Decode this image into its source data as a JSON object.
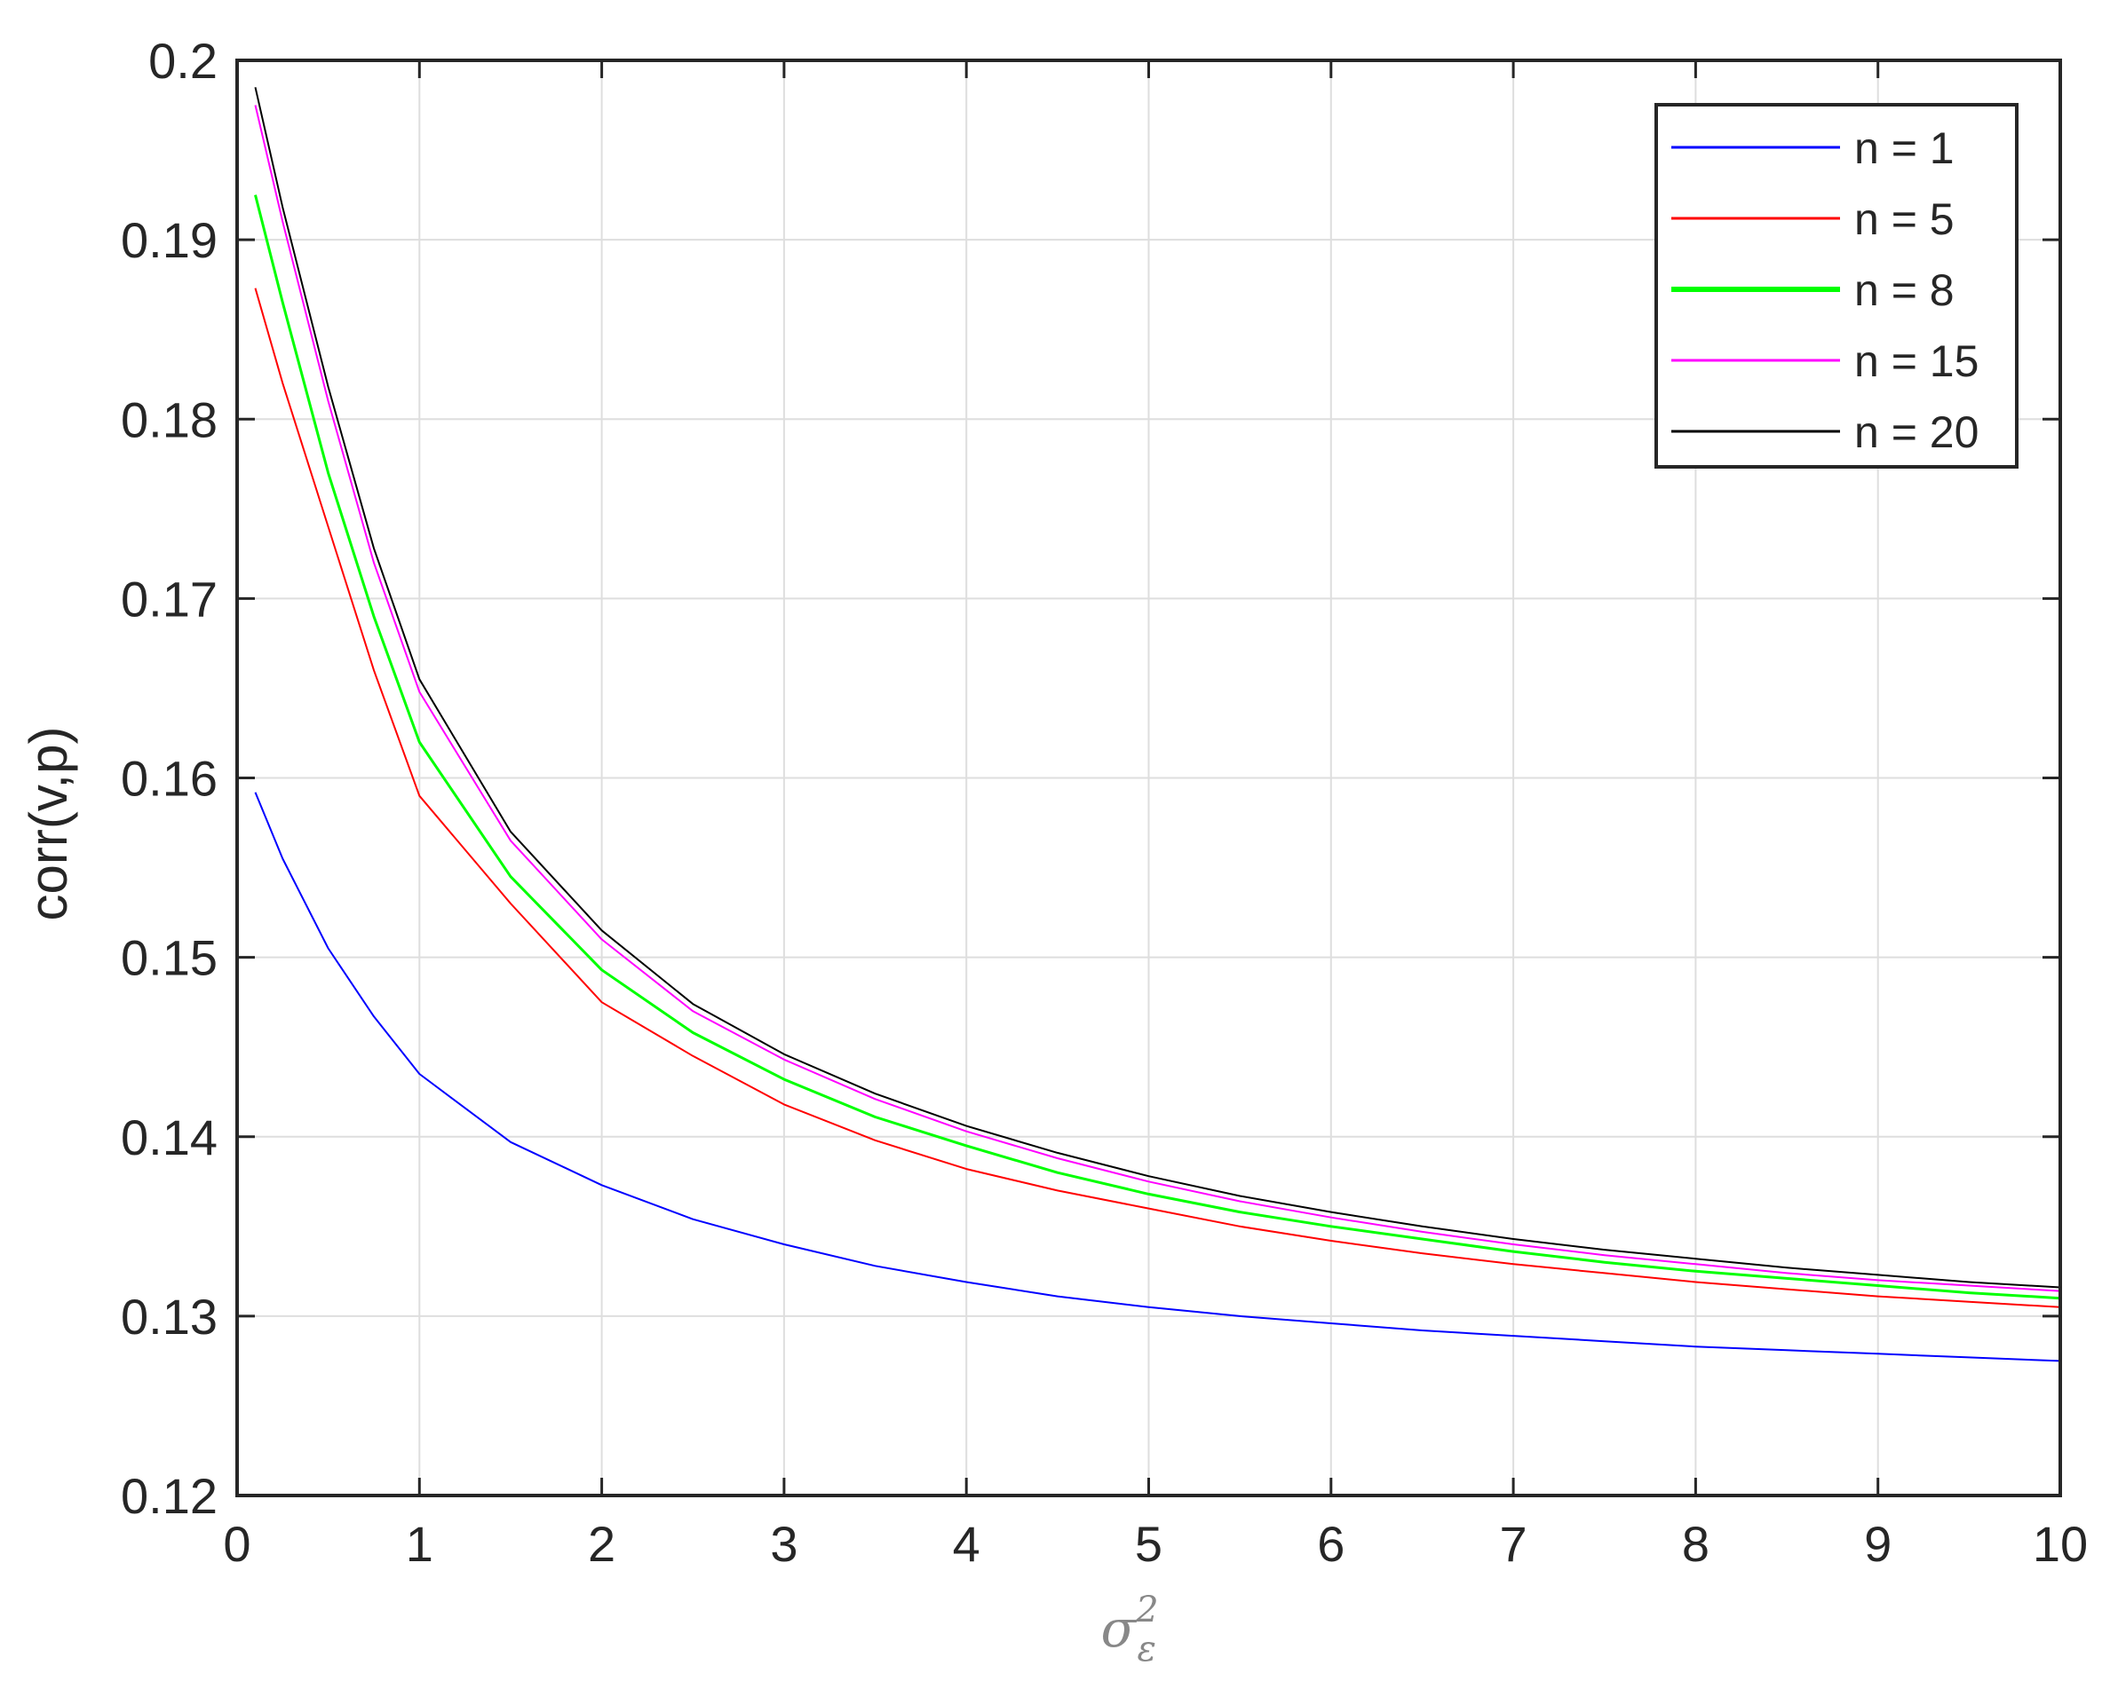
{
  "chart_data": {
    "type": "line",
    "ylabel": "corr(v,p)",
    "xlabel": {
      "base": "σ",
      "sub": "ε",
      "sup": "2"
    },
    "xlim": [
      0,
      10
    ],
    "ylim": [
      0.12,
      0.2
    ],
    "xticks": [
      0,
      1,
      2,
      3,
      4,
      5,
      6,
      7,
      8,
      9,
      10
    ],
    "xtick_labels": [
      "0",
      "1",
      "2",
      "3",
      "4",
      "5",
      "6",
      "7",
      "8",
      "9",
      "10"
    ],
    "yticks": [
      0.12,
      0.13,
      0.14,
      0.15,
      0.16,
      0.17,
      0.18,
      0.19,
      0.2
    ],
    "ytick_labels": [
      "0.12",
      "0.13",
      "0.14",
      "0.15",
      "0.16",
      "0.17",
      "0.18",
      "0.19",
      "0.2"
    ],
    "grid": true,
    "legend_position": "top-right",
    "x": [
      0.1,
      0.25,
      0.5,
      0.75,
      1,
      1.5,
      2,
      2.5,
      3,
      3.5,
      4,
      4.5,
      5,
      5.5,
      6,
      6.5,
      7,
      7.5,
      8,
      8.5,
      9,
      9.5,
      10
    ],
    "series": [
      {
        "name": "n = 1",
        "color": "#0000ff",
        "width": 2,
        "values": [
          0.1592,
          0.1555,
          0.1505,
          0.1467,
          0.1435,
          0.1397,
          0.1373,
          0.1354,
          0.134,
          0.1328,
          0.1319,
          0.1311,
          0.1305,
          0.13,
          0.1296,
          0.1292,
          0.1289,
          0.1286,
          0.1283,
          0.1281,
          0.1279,
          0.1277,
          0.1275
        ]
      },
      {
        "name": "n = 5",
        "color": "#ff0000",
        "width": 2,
        "values": [
          0.1873,
          0.182,
          0.174,
          0.166,
          0.159,
          0.153,
          0.1475,
          0.1445,
          0.1418,
          0.1398,
          0.1382,
          0.137,
          0.136,
          0.135,
          0.1342,
          0.1335,
          0.1329,
          0.1324,
          0.1319,
          0.1315,
          0.1311,
          0.1308,
          0.1305
        ]
      },
      {
        "name": "n = 8",
        "color": "#00ff00",
        "width": 3,
        "values": [
          0.1925,
          0.1865,
          0.177,
          0.169,
          0.162,
          0.1545,
          0.1493,
          0.1458,
          0.1432,
          0.1411,
          0.1395,
          0.138,
          0.1368,
          0.1358,
          0.135,
          0.1343,
          0.1336,
          0.133,
          0.1325,
          0.1321,
          0.1317,
          0.1313,
          0.131
        ]
      },
      {
        "name": "n = 15",
        "color": "#ff00ff",
        "width": 2,
        "values": [
          0.1975,
          0.191,
          0.181,
          0.172,
          0.1648,
          0.1565,
          0.151,
          0.147,
          0.1443,
          0.1421,
          0.1403,
          0.1388,
          0.1375,
          0.1364,
          0.1355,
          0.1347,
          0.134,
          0.1334,
          0.1329,
          0.1324,
          0.132,
          0.1317,
          0.1314
        ]
      },
      {
        "name": "n = 20",
        "color": "#000000",
        "width": 2,
        "values": [
          0.1985,
          0.1918,
          0.1818,
          0.1728,
          0.1655,
          0.157,
          0.1515,
          0.1474,
          0.1446,
          0.1424,
          0.1406,
          0.1391,
          0.1378,
          0.1367,
          0.1358,
          0.135,
          0.1343,
          0.1337,
          0.1332,
          0.1327,
          0.1323,
          0.1319,
          0.1316
        ]
      }
    ]
  }
}
